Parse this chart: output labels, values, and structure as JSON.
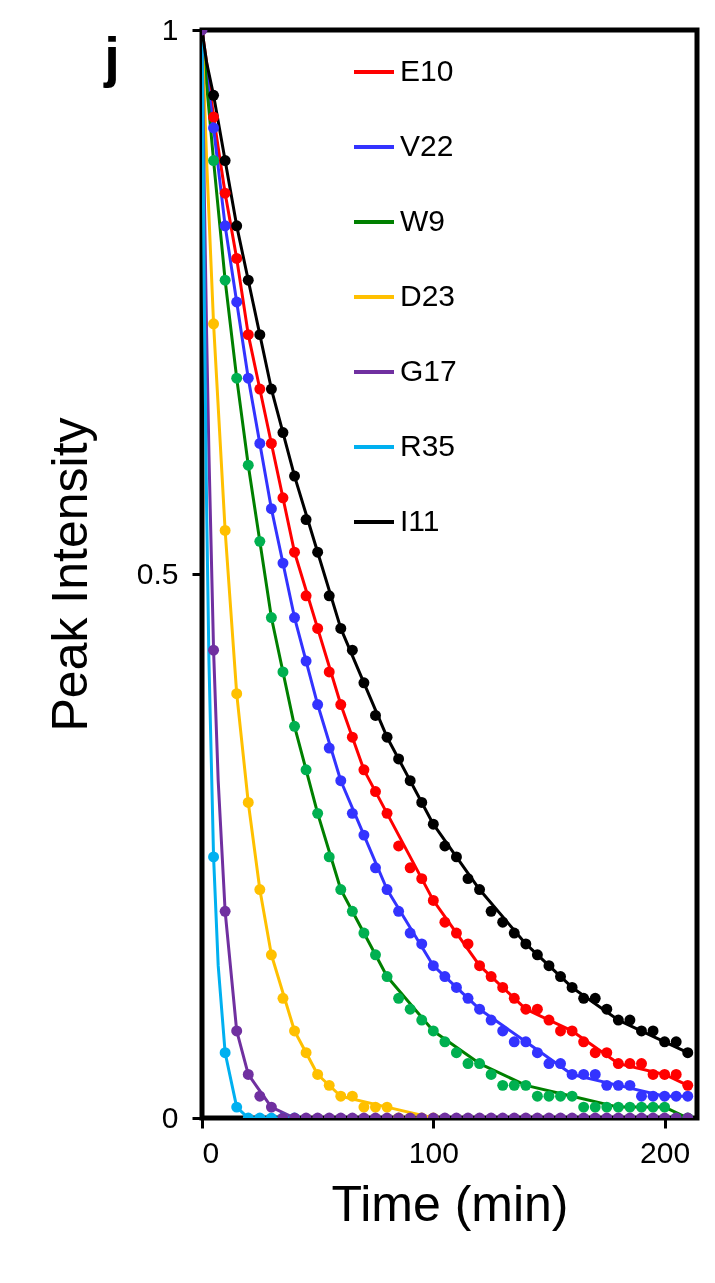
{
  "chart_data": {
    "type": "scatter",
    "xlabel": "Time (min)",
    "ylabel": "Peak Intensity",
    "xlim": [
      0,
      214
    ],
    "ylim": [
      0,
      1
    ],
    "xticks": [
      0,
      100,
      200
    ],
    "yticks": [
      0,
      0.5,
      1
    ],
    "grid": false,
    "legend": "top",
    "annotations": [
      "j"
    ],
    "series": [
      {
        "name": "E10",
        "color": "#ff0000",
        "type": "line",
        "marker": "none",
        "x": [
          0,
          2,
          5,
          10,
          15,
          20,
          30,
          40,
          50,
          60,
          70,
          80,
          100,
          120,
          140,
          160,
          180,
          200,
          210
        ],
        "values": [
          1,
          0.97,
          0.92,
          0.85,
          0.79,
          0.72,
          0.62,
          0.52,
          0.45,
          0.38,
          0.32,
          0.28,
          0.2,
          0.14,
          0.1,
          0.08,
          0.05,
          0.04,
          0.03
        ]
      },
      {
        "name": "V22",
        "color": "#3333ff",
        "type": "line",
        "marker": "none",
        "x": [
          0,
          2,
          5,
          10,
          15,
          20,
          30,
          40,
          50,
          60,
          70,
          80,
          100,
          120,
          140,
          160,
          180,
          200,
          210
        ],
        "values": [
          1,
          0.96,
          0.91,
          0.82,
          0.75,
          0.68,
          0.56,
          0.46,
          0.38,
          0.31,
          0.26,
          0.21,
          0.14,
          0.1,
          0.07,
          0.04,
          0.03,
          0.02,
          0.02
        ]
      },
      {
        "name": "W9",
        "color": "#008000",
        "type": "line",
        "marker": "none",
        "x": [
          0,
          2,
          5,
          10,
          15,
          20,
          30,
          40,
          50,
          60,
          70,
          80,
          100,
          120,
          140,
          160,
          180,
          200,
          210
        ],
        "values": [
          1,
          0.95,
          0.88,
          0.77,
          0.68,
          0.6,
          0.46,
          0.36,
          0.28,
          0.21,
          0.17,
          0.13,
          0.08,
          0.05,
          0.03,
          0.02,
          0.01,
          0.01,
          0
        ]
      },
      {
        "name": "D23",
        "color": "#ffc000",
        "type": "line",
        "marker": "none",
        "x": [
          0,
          2,
          5,
          10,
          15,
          20,
          25,
          30,
          40,
          50,
          60,
          80,
          100
        ],
        "values": [
          1,
          0.88,
          0.73,
          0.54,
          0.39,
          0.29,
          0.21,
          0.15,
          0.08,
          0.04,
          0.02,
          0.01,
          0
        ]
      },
      {
        "name": "G17",
        "color": "#7030a0",
        "type": "line",
        "marker": "none",
        "x": [
          0,
          1,
          2,
          3,
          5,
          7,
          10,
          15,
          20,
          30,
          40
        ],
        "values": [
          1,
          0.85,
          0.72,
          0.61,
          0.43,
          0.31,
          0.19,
          0.08,
          0.04,
          0.01,
          0
        ]
      },
      {
        "name": "R35",
        "color": "#00b0f0",
        "type": "line",
        "marker": "none",
        "x": [
          0,
          1,
          2,
          3,
          5,
          7,
          10,
          15,
          20,
          30,
          40
        ],
        "values": [
          1,
          0.75,
          0.56,
          0.42,
          0.24,
          0.14,
          0.06,
          0.01,
          0,
          0,
          0
        ]
      },
      {
        "name": "I11",
        "color": "#000000",
        "type": "line",
        "marker": "none",
        "x": [
          0,
          2,
          5,
          10,
          15,
          20,
          30,
          40,
          50,
          60,
          70,
          80,
          100,
          120,
          140,
          160,
          180,
          200,
          210
        ],
        "values": [
          1,
          0.97,
          0.94,
          0.88,
          0.82,
          0.77,
          0.67,
          0.59,
          0.52,
          0.45,
          0.4,
          0.35,
          0.27,
          0.21,
          0.16,
          0.12,
          0.09,
          0.07,
          0.06
        ]
      },
      {
        "color": "#ff0000",
        "marker": "circle",
        "x": [
          5,
          10,
          15,
          20,
          25,
          30,
          35,
          40,
          45,
          50,
          55,
          60,
          65,
          70,
          75,
          80,
          85,
          90,
          95,
          100,
          105,
          110,
          115,
          120,
          125,
          130,
          135,
          140,
          145,
          150,
          155,
          160,
          165,
          170,
          175,
          180,
          185,
          190,
          195,
          200,
          205,
          210
        ],
        "values": [
          0.92,
          0.85,
          0.79,
          0.72,
          0.67,
          0.62,
          0.57,
          0.52,
          0.48,
          0.45,
          0.41,
          0.38,
          0.35,
          0.32,
          0.3,
          0.28,
          0.25,
          0.23,
          0.22,
          0.2,
          0.18,
          0.17,
          0.16,
          0.14,
          0.13,
          0.12,
          0.11,
          0.1,
          0.1,
          0.09,
          0.08,
          0.08,
          0.07,
          0.06,
          0.06,
          0.05,
          0.05,
          0.05,
          0.04,
          0.04,
          0.04,
          0.03
        ]
      },
      {
        "color": "#3333ff",
        "marker": "circle",
        "x": [
          5,
          10,
          15,
          20,
          25,
          30,
          35,
          40,
          45,
          50,
          55,
          60,
          65,
          70,
          75,
          80,
          85,
          90,
          95,
          100,
          105,
          110,
          115,
          120,
          125,
          130,
          135,
          140,
          145,
          150,
          155,
          160,
          165,
          170,
          175,
          180,
          185,
          190,
          195,
          200,
          205,
          210
        ],
        "values": [
          0.91,
          0.82,
          0.75,
          0.68,
          0.62,
          0.56,
          0.51,
          0.46,
          0.42,
          0.38,
          0.34,
          0.31,
          0.28,
          0.26,
          0.23,
          0.21,
          0.19,
          0.17,
          0.16,
          0.14,
          0.13,
          0.12,
          0.11,
          0.1,
          0.09,
          0.08,
          0.07,
          0.07,
          0.06,
          0.05,
          0.05,
          0.04,
          0.04,
          0.04,
          0.03,
          0.03,
          0.03,
          0.02,
          0.02,
          0.02,
          0.02,
          0.02
        ]
      },
      {
        "color": "#00b050",
        "marker": "circle",
        "x": [
          5,
          10,
          15,
          20,
          25,
          30,
          35,
          40,
          45,
          50,
          55,
          60,
          65,
          70,
          75,
          80,
          85,
          90,
          95,
          100,
          105,
          110,
          115,
          120,
          125,
          130,
          135,
          140,
          145,
          150,
          155,
          160,
          165,
          170,
          175,
          180,
          185,
          190,
          195,
          200,
          205,
          210
        ],
        "values": [
          0.88,
          0.77,
          0.68,
          0.6,
          0.53,
          0.46,
          0.41,
          0.36,
          0.32,
          0.28,
          0.24,
          0.21,
          0.19,
          0.17,
          0.15,
          0.13,
          0.11,
          0.1,
          0.09,
          0.08,
          0.07,
          0.06,
          0.05,
          0.05,
          0.04,
          0.03,
          0.03,
          0.03,
          0.02,
          0.02,
          0.02,
          0.02,
          0.01,
          0.01,
          0.01,
          0.01,
          0.01,
          0.01,
          0.01,
          0.01,
          0,
          0
        ]
      },
      {
        "color": "#ffc000",
        "marker": "circle",
        "x": [
          5,
          10,
          15,
          20,
          25,
          30,
          35,
          40,
          45,
          50,
          55,
          60,
          65,
          70,
          75,
          80,
          85,
          90,
          95,
          100
        ],
        "values": [
          0.73,
          0.54,
          0.39,
          0.29,
          0.21,
          0.15,
          0.11,
          0.08,
          0.06,
          0.04,
          0.03,
          0.02,
          0.02,
          0.01,
          0.01,
          0.01,
          0,
          0,
          0,
          0
        ]
      },
      {
        "color": "#00b0f0",
        "marker": "circle",
        "x": [
          5,
          10,
          15,
          20,
          25,
          30,
          35,
          40
        ],
        "values": [
          0.24,
          0.06,
          0.01,
          0,
          0,
          0,
          0,
          0
        ]
      },
      {
        "color": "#7030a0",
        "marker": "circle",
        "x": [
          0,
          5,
          10,
          15,
          20,
          25,
          30,
          35,
          40,
          45,
          50,
          55,
          60,
          65,
          70,
          75,
          80,
          85,
          90,
          95,
          100,
          105,
          110,
          115,
          120,
          125,
          130,
          135,
          140,
          145,
          150,
          155,
          160,
          165,
          170,
          175,
          180,
          185,
          190,
          195,
          200,
          205,
          210
        ],
        "values": [
          1,
          0.43,
          0.19,
          0.08,
          0.04,
          0.02,
          0.01,
          0,
          0,
          0,
          0,
          0,
          0,
          0,
          0,
          0,
          0,
          0,
          0,
          0,
          0,
          0,
          0,
          0,
          0,
          0,
          0,
          0,
          0,
          0,
          0,
          0,
          0,
          0,
          0,
          0,
          0,
          0,
          0,
          0,
          0,
          0,
          0
        ]
      },
      {
        "color": "#000000",
        "marker": "circle",
        "x": [
          5,
          10,
          15,
          20,
          25,
          30,
          35,
          40,
          45,
          50,
          55,
          60,
          65,
          70,
          75,
          80,
          85,
          90,
          95,
          100,
          105,
          110,
          115,
          120,
          125,
          130,
          135,
          140,
          145,
          150,
          155,
          160,
          165,
          170,
          175,
          180,
          185,
          190,
          195,
          200,
          205,
          210
        ],
        "values": [
          0.94,
          0.88,
          0.82,
          0.77,
          0.72,
          0.67,
          0.63,
          0.59,
          0.55,
          0.52,
          0.48,
          0.45,
          0.43,
          0.4,
          0.37,
          0.35,
          0.33,
          0.31,
          0.29,
          0.27,
          0.25,
          0.24,
          0.22,
          0.21,
          0.19,
          0.18,
          0.17,
          0.16,
          0.15,
          0.14,
          0.13,
          0.12,
          0.11,
          0.11,
          0.1,
          0.09,
          0.09,
          0.08,
          0.08,
          0.07,
          0.07,
          0.06
        ]
      }
    ]
  }
}
